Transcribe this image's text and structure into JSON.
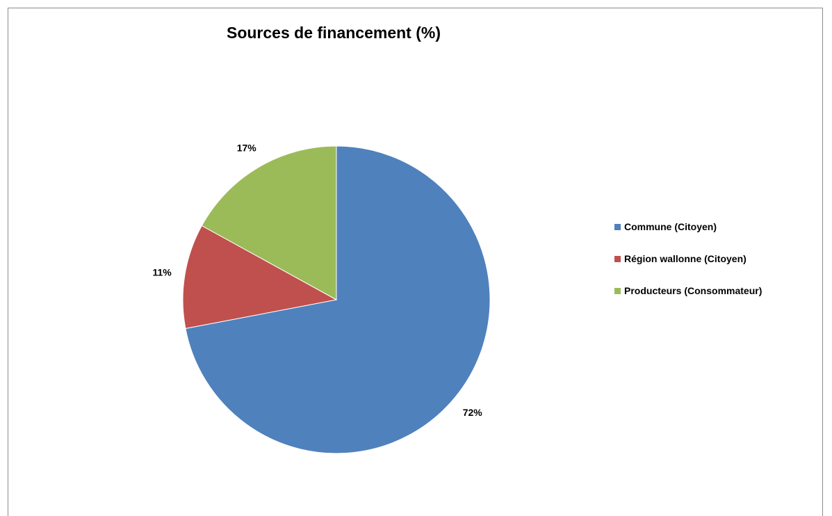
{
  "chart_data": {
    "type": "pie",
    "title": "Sources de financement (%)",
    "categories": [
      "Commune (Citoyen)",
      "Région wallonne (Citoyen)",
      "Producteurs (Consommateur)"
    ],
    "values": [
      72,
      11,
      17
    ],
    "data_labels": [
      "72%",
      "11%",
      "17%"
    ],
    "colors": [
      "#4f81bd",
      "#c0504d",
      "#9bbb59"
    ],
    "legend_position": "right"
  }
}
